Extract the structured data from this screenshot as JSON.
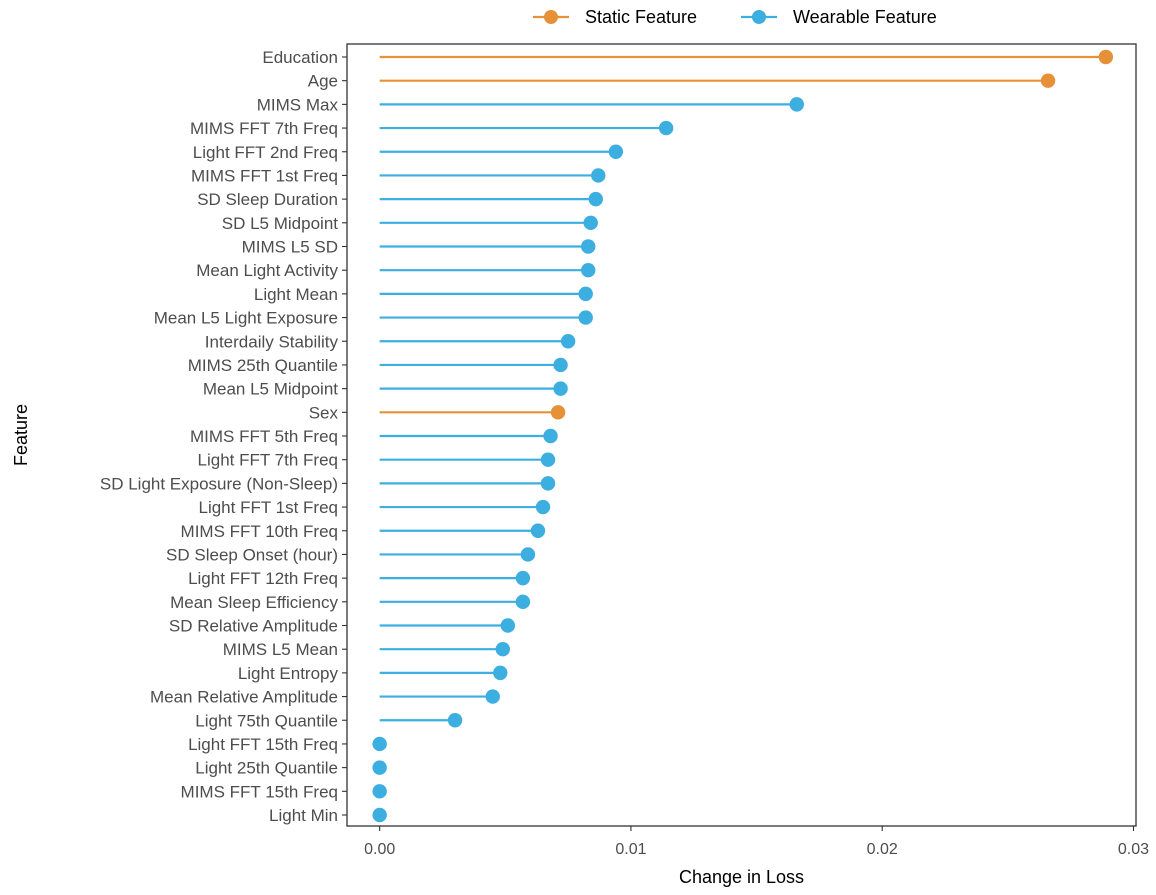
{
  "chart_data": {
    "type": "lollipop",
    "xlabel": "Change in Loss",
    "ylabel": "Feature",
    "xlim": [
      -0.0013,
      0.0301
    ],
    "x_ticks": [
      0.0,
      0.01,
      0.02,
      0.03
    ],
    "x_tick_labels": [
      "0.00",
      "0.01",
      "0.02",
      "0.03"
    ],
    "grid": false,
    "legend_position": "top",
    "legend": [
      {
        "name": "Static Feature",
        "color": "#E69138"
      },
      {
        "name": "Wearable Feature",
        "color": "#3DAEE0"
      }
    ],
    "points": [
      {
        "label": "Education",
        "value": 0.0289,
        "group": "Static Feature"
      },
      {
        "label": "Age",
        "value": 0.0266,
        "group": "Static Feature"
      },
      {
        "label": "MIMS Max",
        "value": 0.0166,
        "group": "Wearable Feature"
      },
      {
        "label": "MIMS FFT 7th Freq",
        "value": 0.0114,
        "group": "Wearable Feature"
      },
      {
        "label": "Light FFT 2nd Freq",
        "value": 0.0094,
        "group": "Wearable Feature"
      },
      {
        "label": "MIMS FFT 1st Freq",
        "value": 0.0087,
        "group": "Wearable Feature"
      },
      {
        "label": "SD Sleep Duration",
        "value": 0.0086,
        "group": "Wearable Feature"
      },
      {
        "label": "SD L5 Midpoint",
        "value": 0.0084,
        "group": "Wearable Feature"
      },
      {
        "label": "MIMS L5 SD",
        "value": 0.0083,
        "group": "Wearable Feature"
      },
      {
        "label": "Mean Light Activity",
        "value": 0.0083,
        "group": "Wearable Feature"
      },
      {
        "label": "Light Mean",
        "value": 0.0082,
        "group": "Wearable Feature"
      },
      {
        "label": "Mean L5 Light Exposure",
        "value": 0.0082,
        "group": "Wearable Feature"
      },
      {
        "label": "Interdaily Stability",
        "value": 0.0075,
        "group": "Wearable Feature"
      },
      {
        "label": "MIMS 25th Quantile",
        "value": 0.0072,
        "group": "Wearable Feature"
      },
      {
        "label": "Mean L5 Midpoint",
        "value": 0.0072,
        "group": "Wearable Feature"
      },
      {
        "label": "Sex",
        "value": 0.0071,
        "group": "Static Feature"
      },
      {
        "label": "MIMS FFT 5th Freq",
        "value": 0.0068,
        "group": "Wearable Feature"
      },
      {
        "label": "Light FFT 7th Freq",
        "value": 0.0067,
        "group": "Wearable Feature"
      },
      {
        "label": "SD Light Exposure (Non-Sleep)",
        "value": 0.0067,
        "group": "Wearable Feature"
      },
      {
        "label": "Light FFT 1st Freq",
        "value": 0.0065,
        "group": "Wearable Feature"
      },
      {
        "label": "MIMS FFT 10th Freq",
        "value": 0.0063,
        "group": "Wearable Feature"
      },
      {
        "label": "SD Sleep Onset (hour)",
        "value": 0.0059,
        "group": "Wearable Feature"
      },
      {
        "label": "Light FFT 12th Freq",
        "value": 0.0057,
        "group": "Wearable Feature"
      },
      {
        "label": "Mean Sleep Efficiency",
        "value": 0.0057,
        "group": "Wearable Feature"
      },
      {
        "label": "SD Relative Amplitude",
        "value": 0.0051,
        "group": "Wearable Feature"
      },
      {
        "label": "MIMS L5 Mean",
        "value": 0.0049,
        "group": "Wearable Feature"
      },
      {
        "label": "Light Entropy",
        "value": 0.0048,
        "group": "Wearable Feature"
      },
      {
        "label": "Mean Relative Amplitude",
        "value": 0.0045,
        "group": "Wearable Feature"
      },
      {
        "label": "Light 75th Quantile",
        "value": 0.003,
        "group": "Wearable Feature"
      },
      {
        "label": "Light FFT 15th Freq",
        "value": 0.0,
        "group": "Wearable Feature"
      },
      {
        "label": "Light 25th Quantile",
        "value": 0.0,
        "group": "Wearable Feature"
      },
      {
        "label": "MIMS FFT 15th Freq",
        "value": 0.0,
        "group": "Wearable Feature"
      },
      {
        "label": "Light Min",
        "value": 0.0,
        "group": "Wearable Feature"
      }
    ]
  }
}
